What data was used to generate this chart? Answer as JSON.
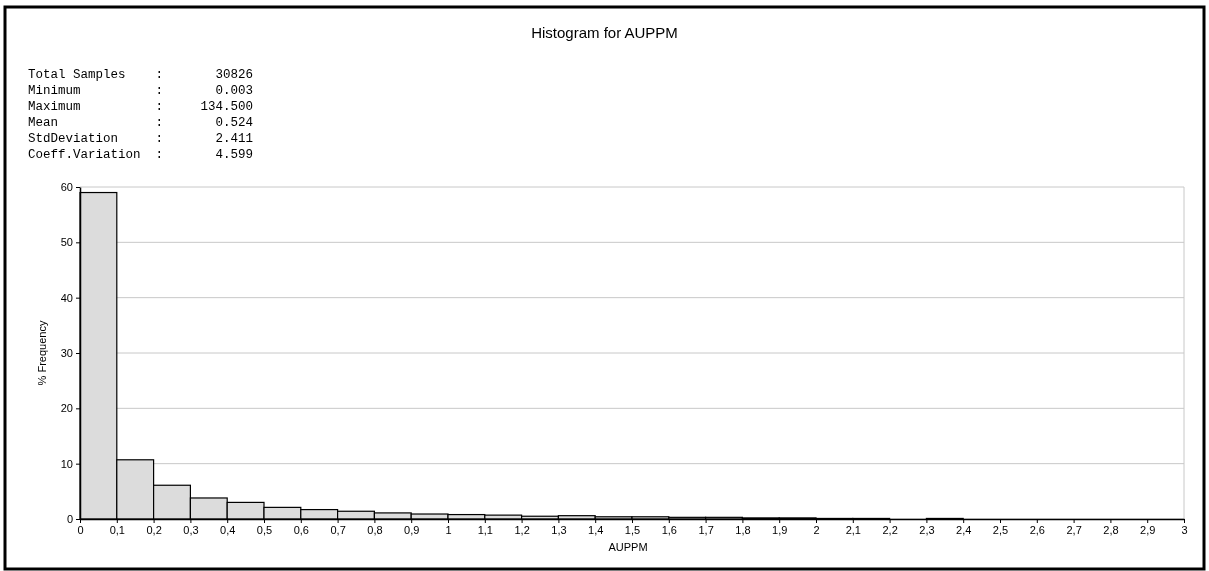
{
  "chart_data": {
    "type": "histogram",
    "title": "Histogram for AUPPM",
    "xlabel": "AUPPM",
    "ylabel": "% Frequency",
    "annotations": [
      "Total Samples    :       30826",
      "Minimum          :       0.003",
      "Maximum          :     134.500",
      "Mean             :       0.524",
      "StdDeviation     :       2.411",
      "Coeff.Variation  :       4.599"
    ],
    "bins": [
      0,
      0.1,
      0.2,
      0.3,
      0.4,
      0.5,
      0.6,
      0.7,
      0.8,
      0.9,
      1,
      1.1,
      1.2,
      1.3,
      1.4,
      1.5,
      1.6,
      1.7,
      1.8,
      1.9,
      2,
      2.1,
      2.2,
      2.3,
      2.4,
      2.5,
      2.6,
      2.7,
      2.8,
      2.9,
      3
    ],
    "values": [
      59,
      10.7,
      6.1,
      3.8,
      3,
      2.1,
      1.7,
      1.4,
      1.1,
      0.9,
      0.8,
      0.7,
      0.5,
      0.6,
      0.4,
      0.4,
      0.3,
      0.3,
      0.2,
      0.2,
      0.1,
      0.1,
      0,
      0.1,
      0,
      0,
      0,
      0,
      0,
      0
    ],
    "color": "#dcdcdc",
    "xlim": [
      0,
      3
    ],
    "ylim": [
      0,
      60
    ],
    "xticks": [
      0,
      {
        "value": 0.1,
        "label": "0,1"
      },
      {
        "value": 0.2,
        "label": "0,2"
      },
      {
        "value": 0.3,
        "label": "0,3"
      },
      {
        "value": 0.4,
        "label": "0,4"
      },
      {
        "value": 0.5,
        "label": "0,5"
      },
      {
        "value": 0.6,
        "label": "0,6"
      },
      {
        "value": 0.7,
        "label": "0,7"
      },
      {
        "value": 0.8,
        "label": "0,8"
      },
      {
        "value": 0.9,
        "label": "0,9"
      },
      1,
      {
        "value": 1.1,
        "label": "1,1"
      },
      {
        "value": 1.2,
        "label": "1,2"
      },
      {
        "value": 1.3,
        "label": "1,3"
      },
      {
        "value": 1.4,
        "label": "1,4"
      },
      {
        "value": 1.5,
        "label": "1,5"
      },
      {
        "value": 1.6,
        "label": "1,6"
      },
      {
        "value": 1.7,
        "label": "1,7"
      },
      {
        "value": 1.8,
        "label": "1,8"
      },
      {
        "value": 1.9,
        "label": "1,9"
      },
      2,
      {
        "value": 2.1,
        "label": "2,1"
      },
      {
        "value": 2.2,
        "label": "2,2"
      },
      {
        "value": 2.3,
        "label": "2,3"
      },
      {
        "value": 2.4,
        "label": "2,4"
      },
      {
        "value": 2.5,
        "label": "2,5"
      },
      {
        "value": 2.6,
        "label": "2,6"
      },
      {
        "value": 2.7,
        "label": "2,7"
      },
      {
        "value": 2.8,
        "label": "2,8"
      },
      {
        "value": 2.9,
        "label": "2,9"
      },
      3
    ],
    "yticks": [
      0,
      10,
      20,
      30,
      40,
      50,
      60
    ],
    "grid": "y"
  }
}
